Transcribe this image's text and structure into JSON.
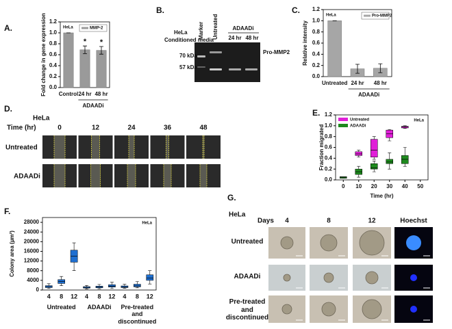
{
  "panel_labels": [
    "A.",
    "B.",
    "C.",
    "D.",
    "E.",
    "F.",
    "G."
  ],
  "chart_data": [
    {
      "type": "bar",
      "annotation": "HeLa",
      "y_label": "Fold change in gene expression",
      "categories": [
        "Control",
        "24 hr",
        "48 hr"
      ],
      "group_label": "ADAADi",
      "series": [
        {
          "name": "MMP-2",
          "color": "#9a9a9a",
          "values": [
            1.0,
            0.69,
            0.68
          ],
          "errors": [
            0,
            0.07,
            0.07
          ]
        }
      ],
      "significance": [
        null,
        "*",
        "*"
      ],
      "ylim": [
        0,
        1.2
      ],
      "yticks": [
        {
          "value": 0,
          "label": "0.0"
        },
        0.2,
        0.4,
        0.6,
        0.8,
        {
          "value": 1,
          "label": "1.0"
        },
        1.2
      ]
    },
    {
      "type": "bar",
      "annotation": "HeLa",
      "y_label": "Relative intensity",
      "categories": [
        "Untreated",
        "24 hr",
        "48 hr"
      ],
      "group_label": "ADAADi",
      "series": [
        {
          "name": "Pro-MMP2",
          "color": "#a6a6a6",
          "values": [
            1.0,
            0.14,
            0.15
          ],
          "errors": [
            0,
            0.08,
            0.08
          ]
        }
      ],
      "ylim": [
        0,
        1.2
      ],
      "yticks": [
        {
          "value": 0,
          "label": "0.0"
        },
        0.2,
        0.4,
        0.6,
        0.8,
        {
          "value": 1,
          "label": "1.0"
        },
        1.2
      ]
    },
    {
      "type": "box",
      "annotation": "HeLa",
      "x_label": "Time (hr)",
      "y_label": "Fraction migrated",
      "x": [
        0,
        10,
        20,
        30,
        40
      ],
      "series": [
        {
          "name": "Untreated",
          "color": "#e020d8",
          "min": [
            null,
            0.42,
            0.38,
            0.72,
            0.95
          ],
          "q1": [
            null,
            0.45,
            0.42,
            0.78,
            0.96
          ],
          "median": [
            null,
            0.48,
            0.55,
            0.85,
            0.98
          ],
          "q3": [
            null,
            0.52,
            0.75,
            0.92,
            0.99
          ],
          "max": [
            null,
            0.55,
            0.8,
            0.93,
            1.0
          ]
        },
        {
          "name": "ADAADi",
          "color": "#1e8a1e",
          "min": [
            0.03,
            0.05,
            0.15,
            0.2,
            0.25
          ],
          "q1": [
            0.03,
            0.1,
            0.2,
            0.3,
            0.3
          ],
          "median": [
            0.05,
            0.15,
            0.22,
            0.33,
            0.38
          ],
          "q3": [
            0.06,
            0.2,
            0.3,
            0.38,
            0.45
          ],
          "max": [
            0.06,
            0.25,
            0.35,
            0.5,
            0.6
          ]
        }
      ],
      "xlim": [
        -5,
        55
      ],
      "xticks": [
        0,
        10,
        20,
        30,
        40,
        50
      ],
      "ylim": [
        0,
        1.2
      ],
      "yticks": [
        {
          "value": 0,
          "label": "0.0"
        },
        0.2,
        0.4,
        0.6,
        0.8,
        {
          "value": 1,
          "label": "1.0"
        },
        1.2
      ]
    },
    {
      "type": "box",
      "annotation": "HeLa",
      "y_label": "Colony area (µm²)",
      "categories": [
        "4",
        "8",
        "12",
        "4",
        "8",
        "12",
        "4",
        "8",
        "12"
      ],
      "groups": [
        "Untreated",
        "ADAADi",
        "Pre-treated and discontinued"
      ],
      "series": [
        {
          "color": "#1f6fd0",
          "min": [
            600,
            1800,
            8000,
            400,
            500,
            600,
            700,
            900,
            2500
          ],
          "q1": [
            1000,
            2700,
            11500,
            800,
            900,
            1200,
            1000,
            1300,
            4000
          ],
          "median": [
            1400,
            3500,
            14000,
            1100,
            1200,
            1600,
            1300,
            1700,
            5000
          ],
          "q3": [
            1800,
            4300,
            16500,
            1400,
            1600,
            2200,
            1700,
            2400,
            6300
          ],
          "max": [
            2600,
            5600,
            19500,
            1900,
            2300,
            3200,
            2400,
            3500,
            8000
          ]
        }
      ],
      "ylim": [
        0,
        30000
      ],
      "yticks": [
        0,
        4000,
        8000,
        12000,
        16000,
        20000,
        24000,
        28000
      ]
    }
  ],
  "gel": {
    "cell_line": "HeLa",
    "sample": "Conditioned media",
    "markers": [
      "70 kDa",
      "57 kDa"
    ],
    "lanes": [
      "Marker",
      "Untreated"
    ],
    "treatment": "ADAADi",
    "times": [
      "24 hr",
      "48 hr"
    ],
    "band_label": "Pro-MMP2"
  },
  "wound_assay": {
    "cell_line": "HeLa",
    "time_label": "Time (hr)",
    "times": [
      "0",
      "12",
      "24",
      "36",
      "48"
    ],
    "rows": [
      "Untreated",
      "ADAADi"
    ]
  },
  "colony_assay": {
    "cell_line": "HeLa",
    "days_label": "Days",
    "columns": [
      "4",
      "8",
      "12",
      "Hoechst"
    ],
    "rows": [
      "Untreated",
      "ADAADi",
      "Pre-treated and discontinued"
    ]
  }
}
